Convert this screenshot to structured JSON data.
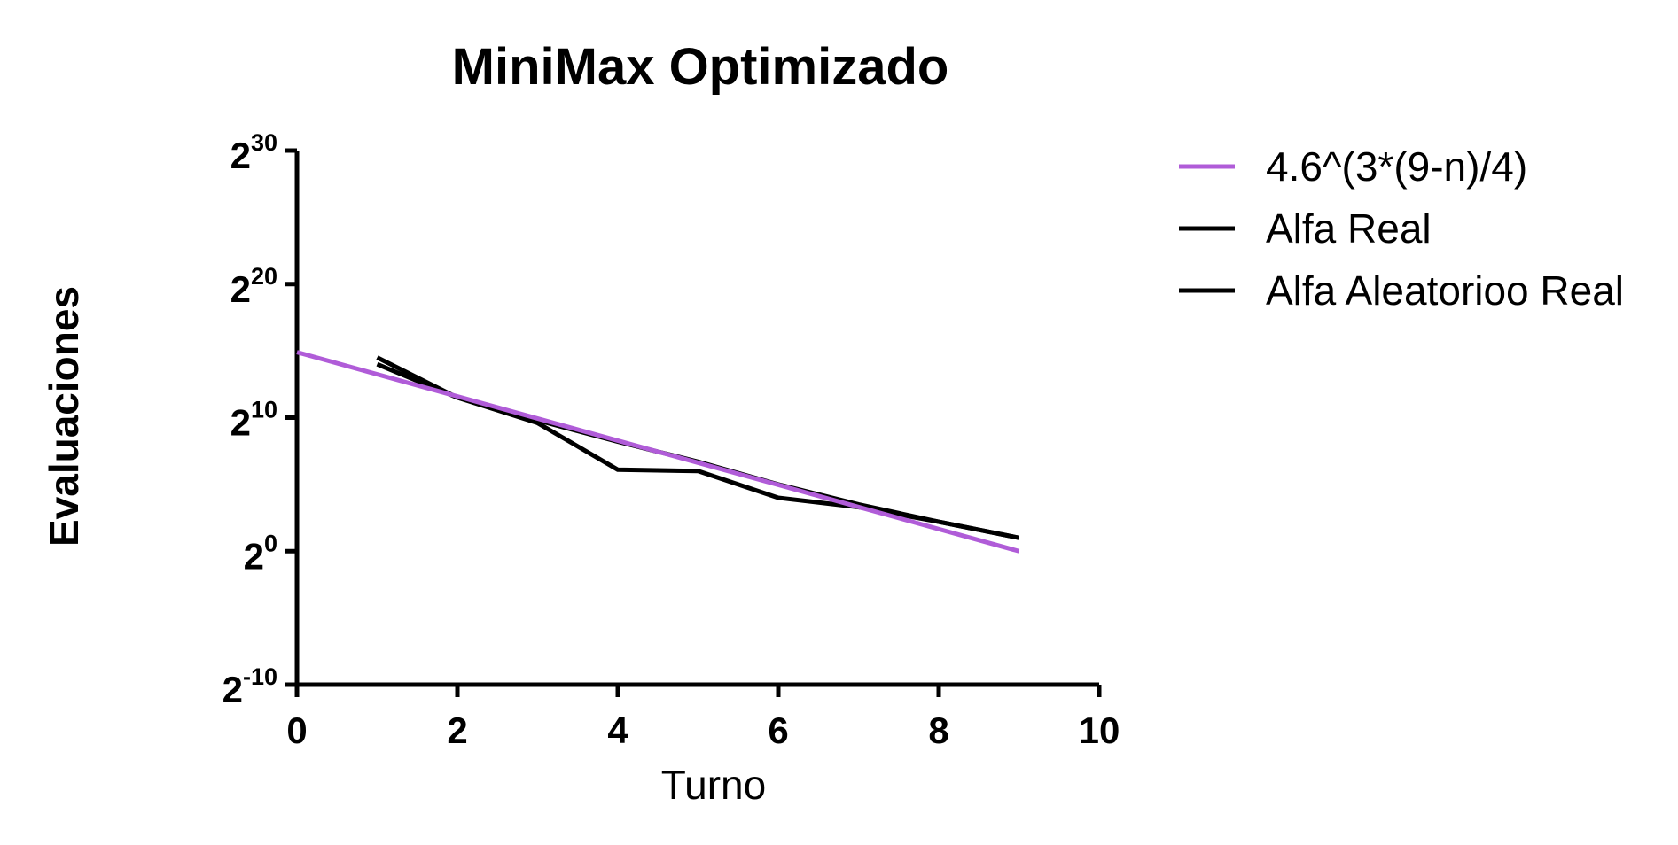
{
  "chart_data": {
    "type": "line",
    "title": "MiniMax Optimizado",
    "xlabel": "Turno",
    "ylabel": "Evaluaciones",
    "xlim": [
      0,
      10
    ],
    "ylim_log2": [
      -10,
      30
    ],
    "yscale": "log2",
    "x_ticks": [
      "0",
      "2",
      "4",
      "6",
      "8",
      "10"
    ],
    "y_ticks": [
      {
        "base": "2",
        "exp": "30"
      },
      {
        "base": "2",
        "exp": "20"
      },
      {
        "base": "2",
        "exp": "10"
      },
      {
        "base": "2",
        "exp": "0"
      },
      {
        "base": "2",
        "exp": "-10"
      }
    ],
    "grid": false,
    "legend_position": "right",
    "series": [
      {
        "name": "4.6^(3*(9-n)/4)",
        "color": "#b05cd8",
        "x": [
          0,
          9
        ],
        "log2_y": [
          14.9,
          0
        ]
      },
      {
        "name": "Alfa Real",
        "color": "#000000",
        "x": [
          1,
          2,
          3,
          4,
          5,
          6,
          7,
          8,
          9
        ],
        "log2_y": [
          14.0,
          11.5,
          9.8,
          8.2,
          6.7,
          5.0,
          3.5,
          2.2,
          1.0
        ]
      },
      {
        "name": "Alfa Aleatorioo Real",
        "color": "#000000",
        "x": [
          1,
          2,
          3,
          4,
          5,
          6,
          7,
          8,
          9
        ],
        "log2_y": [
          14.5,
          11.5,
          9.6,
          6.1,
          6.0,
          4.0,
          3.3,
          2.2,
          1.0
        ]
      }
    ]
  }
}
